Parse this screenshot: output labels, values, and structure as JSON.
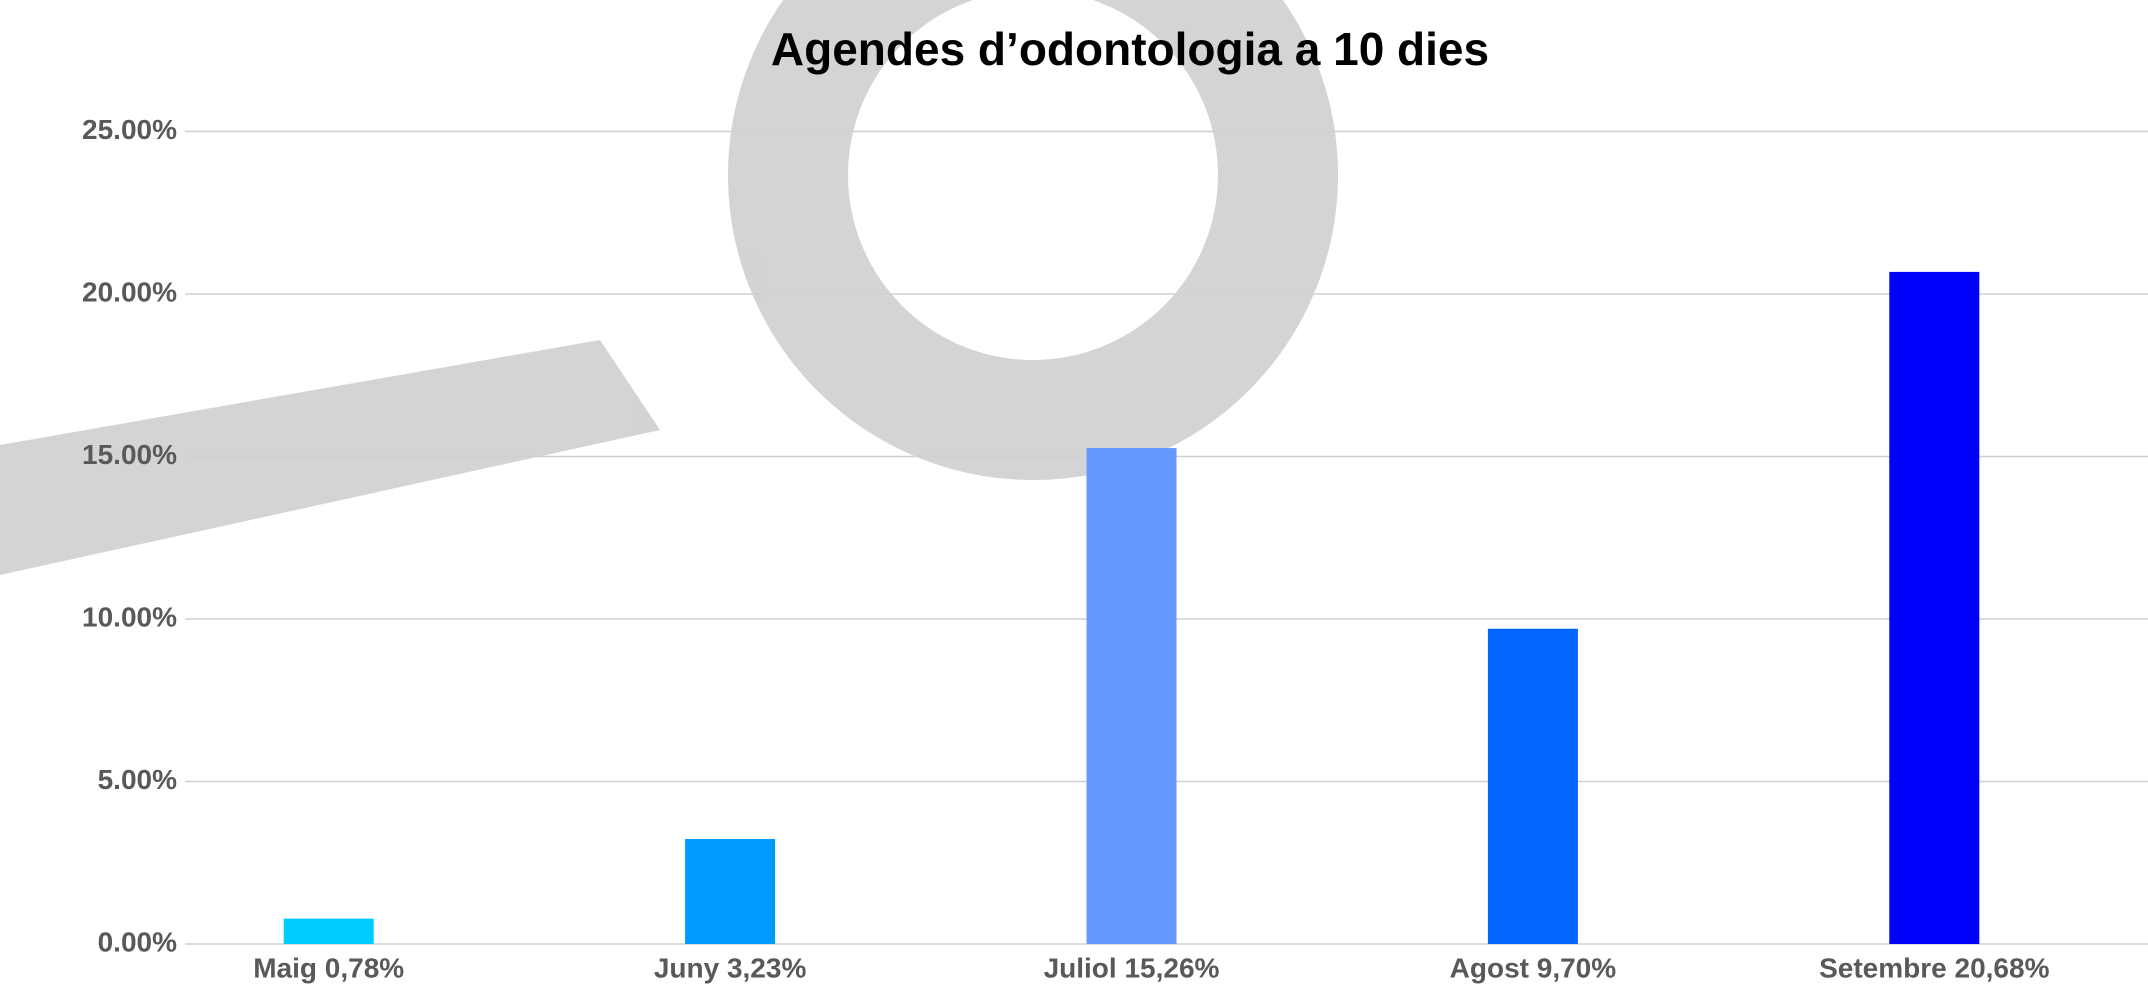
{
  "chart_data": {
    "type": "bar",
    "title": "Agendes d’odontologia a 10 dies",
    "categories": [
      "Maig 0,78%",
      "Juny 3,23%",
      "Juliol 15,26%",
      "Agost 9,70%",
      "Setembre 20,68%"
    ],
    "values": [
      0.78,
      3.23,
      15.26,
      9.7,
      20.68
    ],
    "colors": [
      "#00ccff",
      "#0099ff",
      "#6699ff",
      "#0066ff",
      "#0000ff"
    ],
    "ylim": [
      0,
      25
    ],
    "yticks": [
      {
        "value": 0,
        "label": "0.00%"
      },
      {
        "value": 5,
        "label": "5.00%"
      },
      {
        "value": 10,
        "label": "10.00%"
      },
      {
        "value": 15,
        "label": "15.00%"
      },
      {
        "value": 20,
        "label": "20.00%"
      },
      {
        "value": 25,
        "label": "25.00%"
      }
    ],
    "grid": true
  }
}
